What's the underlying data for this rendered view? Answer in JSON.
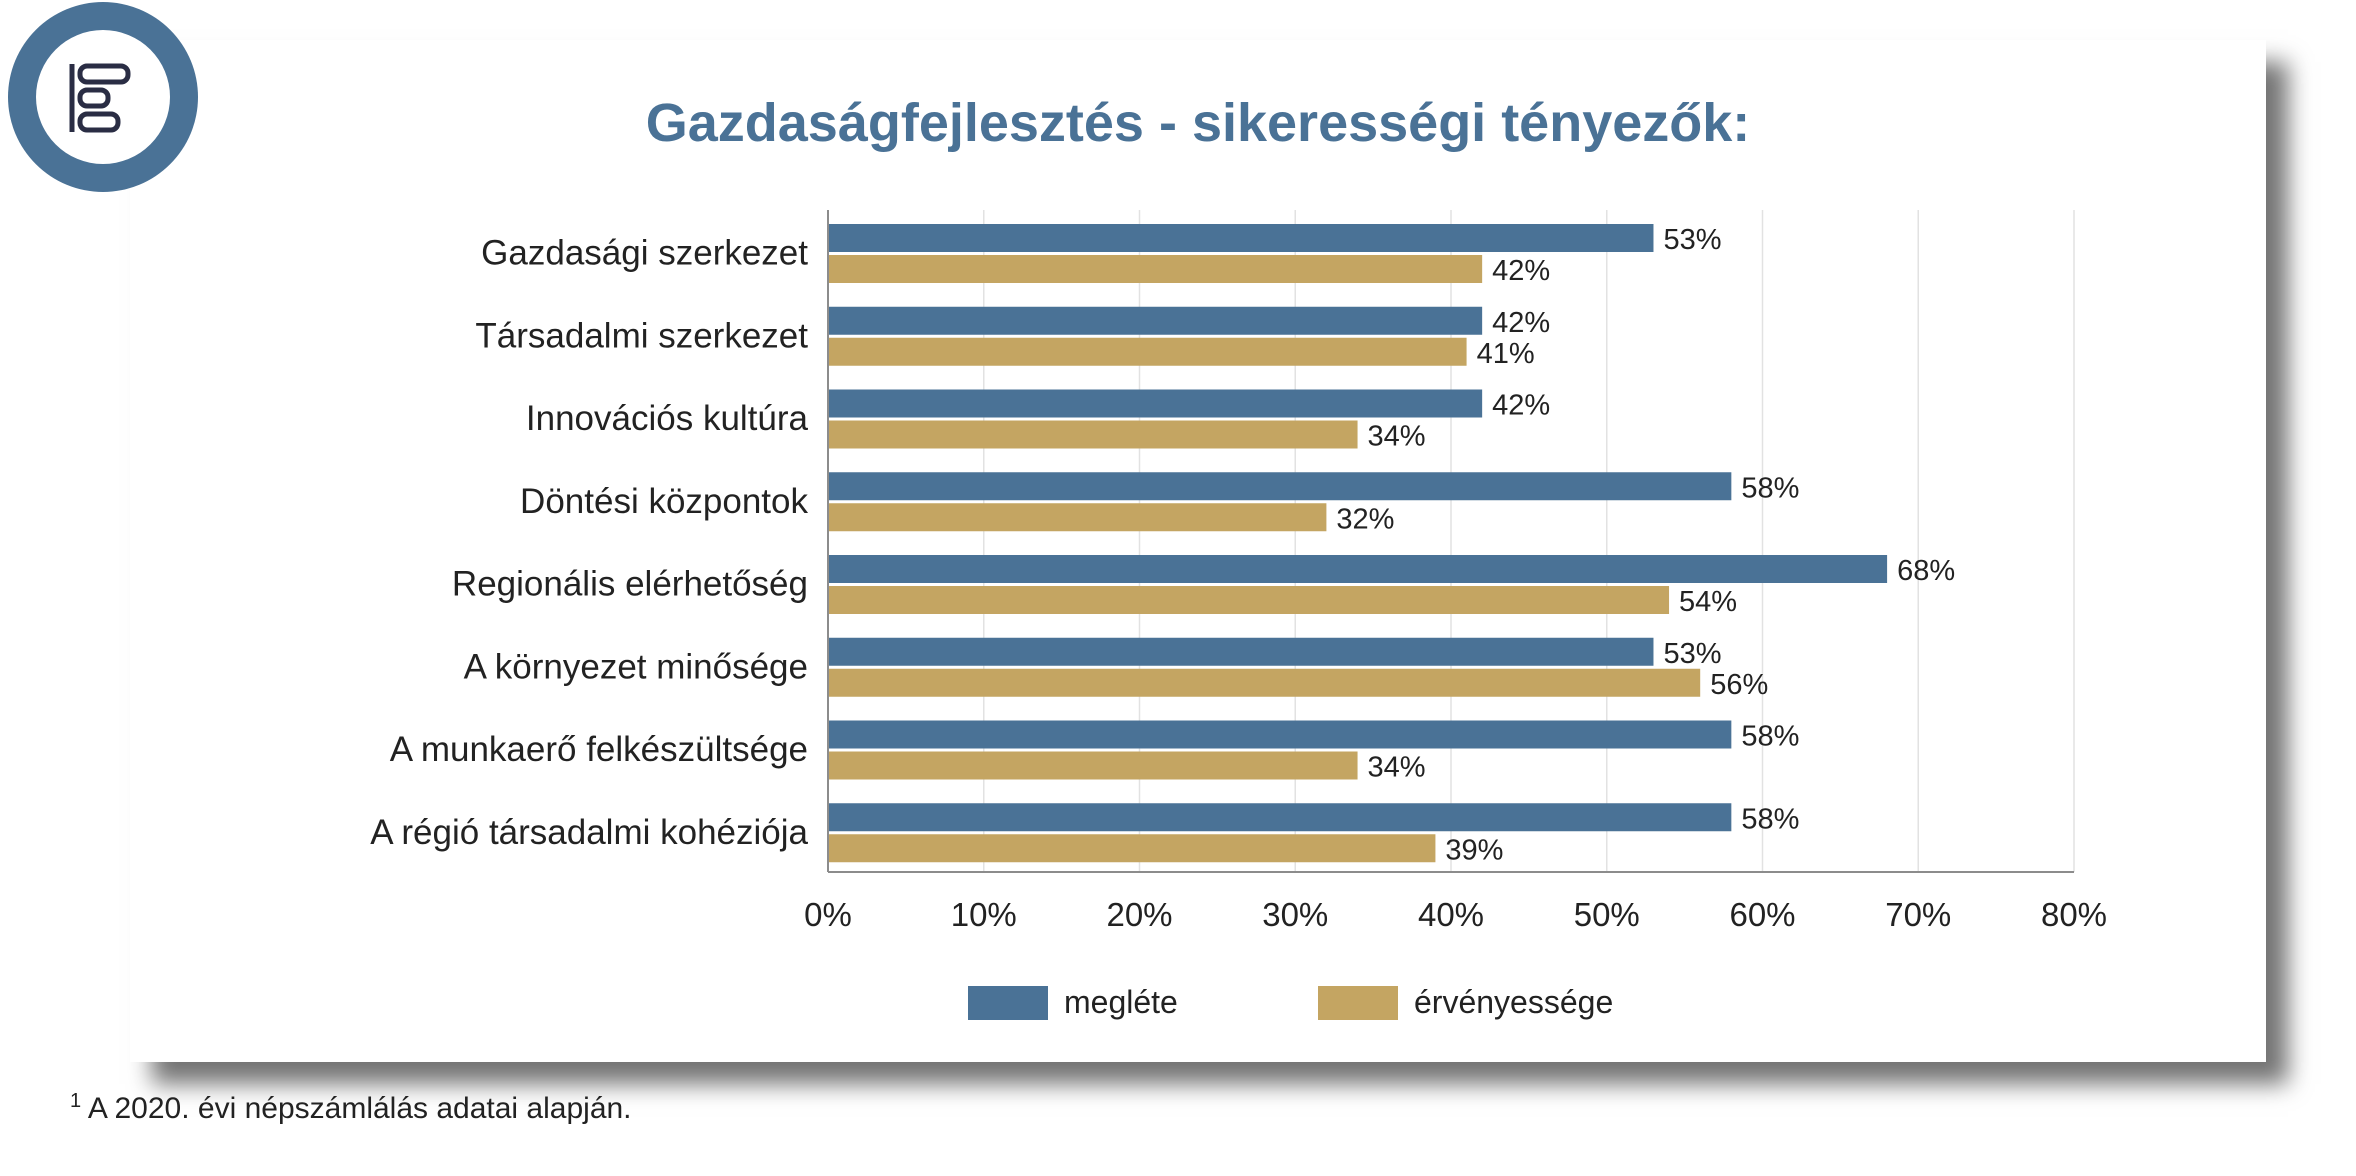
{
  "footnote": {
    "marker": "1",
    "text": "A 2020. évi népszámlálás adatai alapján."
  },
  "colors": {
    "series_1": "#4a7296",
    "series_2": "#c4a562",
    "logo": "#4a7296",
    "title": "#4a7296"
  },
  "logo": {
    "icon": "gantt-chart-icon"
  },
  "chart_data": {
    "type": "bar",
    "orientation": "horizontal",
    "title": "Gazdaságfejlesztés - sikerességi tényezők:",
    "categories": [
      "Gazdasági szerkezet",
      "Társadalmi szerkezet",
      "Innovációs kultúra",
      "Döntési központok",
      "Regionális elérhetőség",
      "A környezet minősége",
      "A munkaerő felkészültsége",
      "A régió társadalmi kohéziója"
    ],
    "series": [
      {
        "name": "megléte",
        "values": [
          53,
          42,
          42,
          58,
          68,
          53,
          58,
          58
        ],
        "labels": [
          "53%",
          "42%",
          "42%",
          "58%",
          "68%",
          "53%",
          "58%",
          "58%"
        ]
      },
      {
        "name": "érvényessége",
        "values": [
          42,
          41,
          34,
          32,
          54,
          56,
          34,
          39
        ],
        "labels": [
          "42%",
          "41%",
          "34%",
          "32%",
          "54%",
          "56%",
          "34%",
          "39%"
        ]
      }
    ],
    "xlim": [
      0,
      80
    ],
    "xticks": [
      0,
      10,
      20,
      30,
      40,
      50,
      60,
      70,
      80
    ],
    "xtick_labels": [
      "0%",
      "10%",
      "20%",
      "30%",
      "40%",
      "50%",
      "60%",
      "70%",
      "80%"
    ],
    "grid": "vertical",
    "legend": "bottom"
  }
}
